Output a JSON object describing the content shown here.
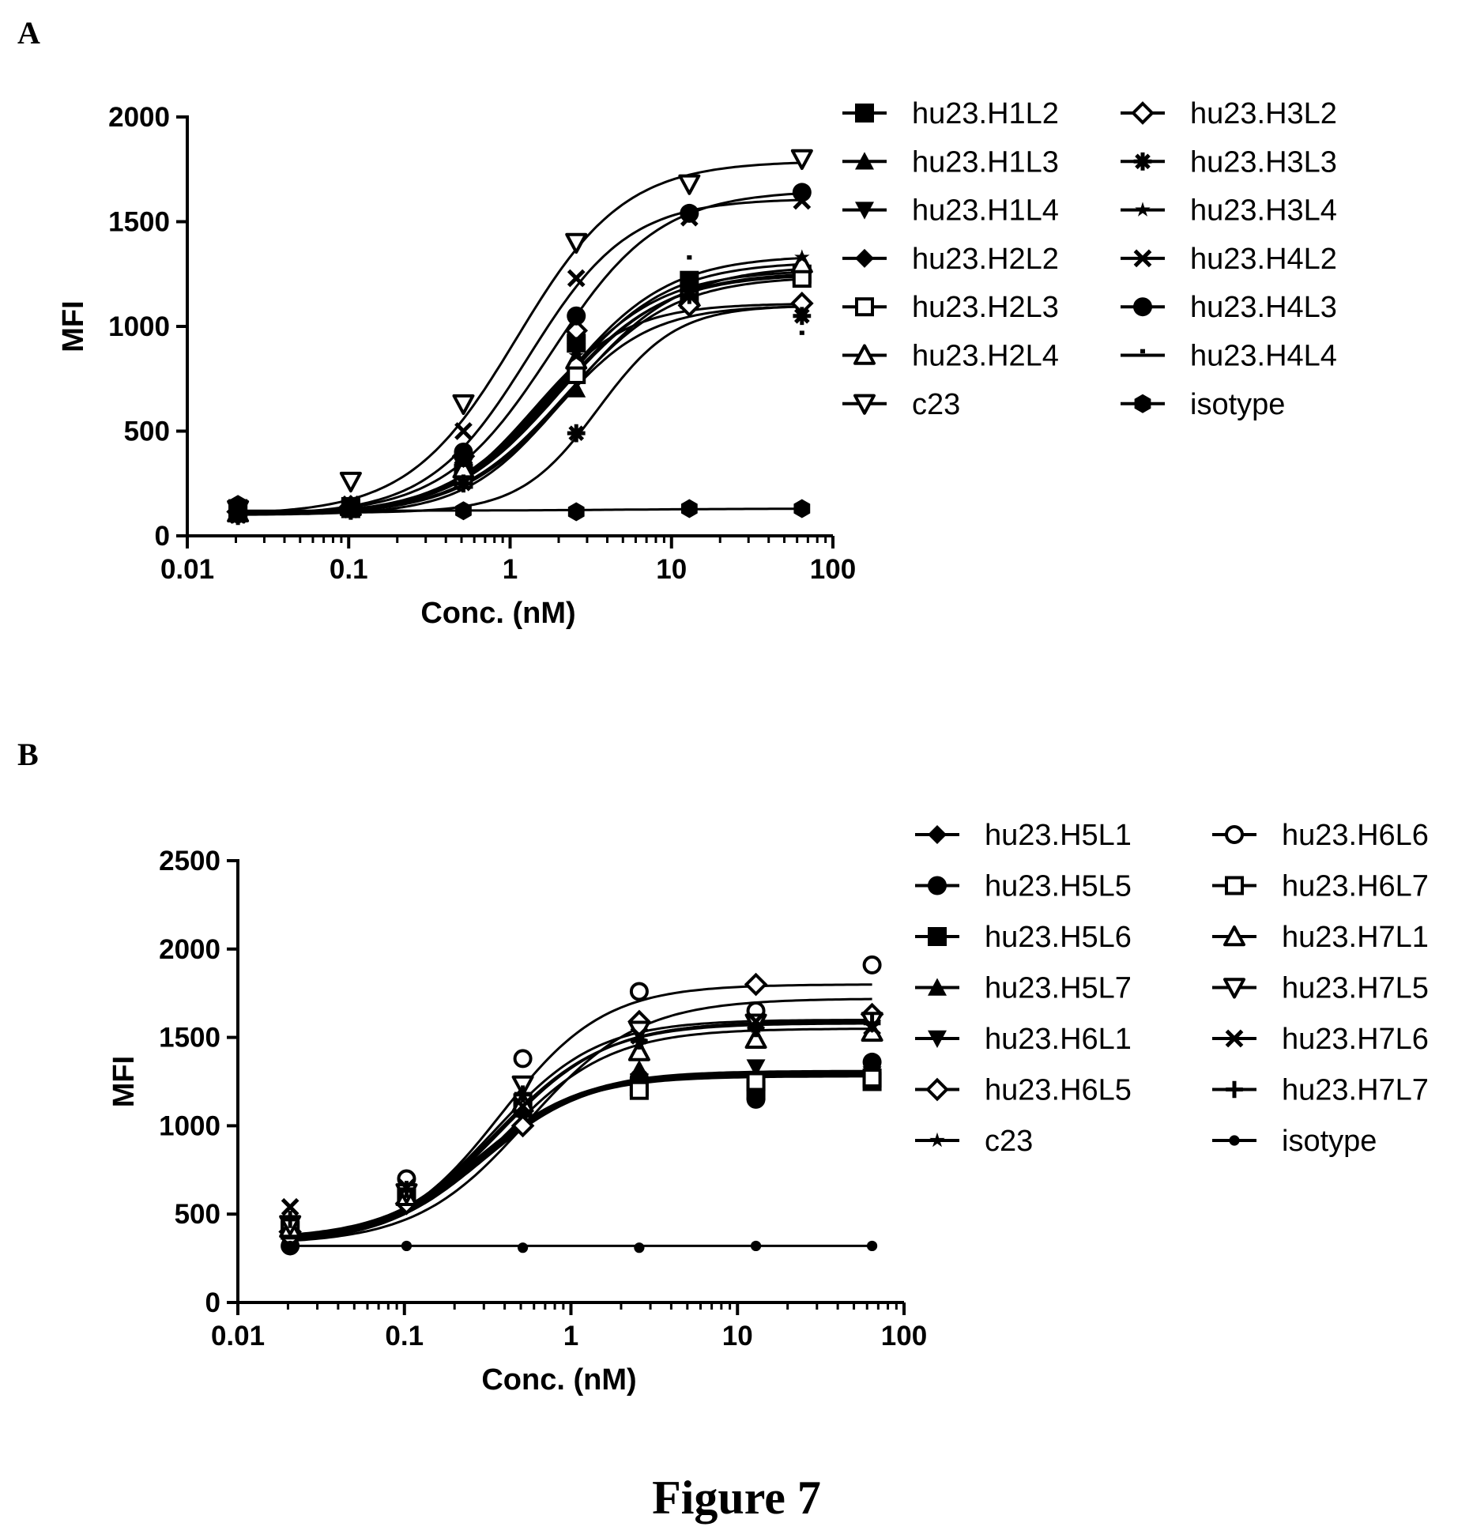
{
  "figure_caption": "Figure 7",
  "chart_data": [
    {
      "panel": "A",
      "type": "line",
      "xscale": "log",
      "xlabel": "Conc. (nM)",
      "ylabel": "MFI",
      "xlim": [
        0.01,
        100
      ],
      "ylim": [
        0,
        2000
      ],
      "xticks": [
        "0.01",
        "0.1",
        "1",
        "10",
        "100"
      ],
      "yticks": [
        "0",
        "500",
        "1000",
        "1500",
        "2000"
      ],
      "legend_position": "right",
      "x": [
        0.0206,
        0.103,
        0.514,
        2.57,
        12.9,
        64.3
      ],
      "series": [
        {
          "name": "hu23.H1L2",
          "marker": "square-filled",
          "values": [
            110,
            140,
            300,
            920,
            1220,
            1250
          ],
          "fit": {
            "bottom": 100,
            "top": 1260,
            "ec50": 2.0,
            "hill": 1.3
          }
        },
        {
          "name": "hu23.H1L3",
          "marker": "triangle-up-filled",
          "values": [
            115,
            130,
            280,
            700,
            1180,
            1280
          ],
          "fit": {
            "bottom": 100,
            "top": 1290,
            "ec50": 2.4,
            "hill": 1.3
          }
        },
        {
          "name": "hu23.H1L4",
          "marker": "triangle-down-filled",
          "values": [
            120,
            145,
            330,
            880,
            1150,
            1240
          ],
          "fit": {
            "bottom": 100,
            "top": 1250,
            "ec50": 1.9,
            "hill": 1.3
          }
        },
        {
          "name": "hu23.H2L2",
          "marker": "diamond-filled",
          "values": [
            100,
            140,
            350,
            950,
            1170,
            1260
          ],
          "fit": {
            "bottom": 100,
            "top": 1270,
            "ec50": 1.8,
            "hill": 1.3
          }
        },
        {
          "name": "hu23.H2L3",
          "marker": "square-open",
          "values": [
            130,
            130,
            270,
            770,
            1130,
            1230
          ],
          "fit": {
            "bottom": 100,
            "top": 1240,
            "ec50": 2.2,
            "hill": 1.3
          }
        },
        {
          "name": "hu23.H2L4",
          "marker": "triangle-up-open",
          "values": [
            110,
            140,
            320,
            840,
            1140,
            1300
          ],
          "fit": {
            "bottom": 100,
            "top": 1310,
            "ec50": 2.0,
            "hill": 1.3
          }
        },
        {
          "name": "c23",
          "marker": "triangle-down-open",
          "values": [
            125,
            260,
            630,
            1400,
            1680,
            1800
          ],
          "fit": {
            "bottom": 100,
            "top": 1790,
            "ec50": 1.1,
            "hill": 1.3
          }
        },
        {
          "name": "hu23.H3L2",
          "marker": "diamond-open",
          "values": [
            115,
            140,
            380,
            980,
            1100,
            1110
          ],
          "fit": {
            "bottom": 100,
            "top": 1110,
            "ec50": 1.4,
            "hill": 1.5
          }
        },
        {
          "name": "hu23.H3L3",
          "marker": "asterisk",
          "values": [
            95,
            120,
            250,
            490,
            1150,
            1050
          ],
          "fit": {
            "bottom": 110,
            "top": 1100,
            "ec50": 3.5,
            "hill": 1.8
          }
        },
        {
          "name": "hu23.H3L4",
          "marker": "star",
          "values": [
            110,
            140,
            360,
            860,
            1180,
            1330
          ],
          "fit": {
            "bottom": 100,
            "top": 1340,
            "ec50": 2.0,
            "hill": 1.3
          }
        },
        {
          "name": "hu23.H4L2",
          "marker": "x",
          "values": [
            100,
            150,
            500,
            1230,
            1520,
            1600
          ],
          "fit": {
            "bottom": 100,
            "top": 1610,
            "ec50": 1.3,
            "hill": 1.4
          }
        },
        {
          "name": "hu23.H4L3",
          "marker": "circle-filled",
          "values": [
            105,
            130,
            400,
            1050,
            1540,
            1640
          ],
          "fit": {
            "bottom": 100,
            "top": 1650,
            "ec50": 1.8,
            "hill": 1.3
          }
        },
        {
          "name": "hu23.H4L4",
          "marker": "tick",
          "values": [
            95,
            120,
            320,
            920,
            1310,
            950
          ],
          "fit": {
            "bottom": 100,
            "top": 1100,
            "ec50": 1.9,
            "hill": 1.5
          }
        },
        {
          "name": "isotype",
          "marker": "hexagon-filled",
          "values": [
            150,
            125,
            120,
            115,
            130,
            130
          ],
          "fit": {
            "bottom": 120,
            "top": 130,
            "ec50": 5.0,
            "hill": 1.0
          }
        }
      ]
    },
    {
      "panel": "B",
      "type": "line",
      "xscale": "log",
      "xlabel": "Conc. (nM)",
      "ylabel": "MFI",
      "xlim": [
        0.01,
        100
      ],
      "ylim": [
        0,
        2500
      ],
      "xticks": [
        "0.01",
        "0.1",
        "1",
        "10",
        "100"
      ],
      "yticks": [
        "0",
        "500",
        "1000",
        "1500",
        "2000",
        "2500"
      ],
      "legend_position": "right",
      "x": [
        0.0206,
        0.103,
        0.514,
        2.57,
        12.9,
        64.3
      ],
      "series": [
        {
          "name": "hu23.H5L1",
          "marker": "diamond-filled",
          "values": [
            390,
            600,
            1120,
            1290,
            1260,
            1290
          ],
          "fit": {
            "bottom": 330,
            "top": 1300,
            "ec50": 0.3,
            "hill": 1.4
          }
        },
        {
          "name": "hu23.H5L5",
          "marker": "circle-filled",
          "values": [
            320,
            580,
            1090,
            1270,
            1150,
            1360
          ],
          "fit": {
            "bottom": 330,
            "top": 1290,
            "ec50": 0.3,
            "hill": 1.4
          }
        },
        {
          "name": "hu23.H5L6",
          "marker": "square-filled",
          "values": [
            410,
            610,
            1100,
            1220,
            1200,
            1250
          ],
          "fit": {
            "bottom": 350,
            "top": 1280,
            "ec50": 0.28,
            "hill": 1.4
          }
        },
        {
          "name": "hu23.H5L7",
          "marker": "triangle-up-filled",
          "values": [
            440,
            630,
            1140,
            1320,
            1280,
            1300
          ],
          "fit": {
            "bottom": 350,
            "top": 1300,
            "ec50": 0.28,
            "hill": 1.4
          }
        },
        {
          "name": "hu23.H6L1",
          "marker": "triangle-down-filled",
          "values": [
            360,
            590,
            1080,
            1250,
            1330,
            1290
          ],
          "fit": {
            "bottom": 340,
            "top": 1310,
            "ec50": 0.3,
            "hill": 1.4
          }
        },
        {
          "name": "hu23.H6L5",
          "marker": "diamond-open",
          "values": [
            400,
            560,
            1000,
            1590,
            1800,
            1630
          ],
          "fit": {
            "bottom": 330,
            "top": 1720,
            "ec50": 0.55,
            "hill": 1.3
          }
        },
        {
          "name": "c23",
          "marker": "star",
          "values": [
            450,
            600,
            1140,
            1480,
            1560,
            1560
          ],
          "fit": {
            "bottom": 350,
            "top": 1580,
            "ec50": 0.36,
            "hill": 1.35
          }
        },
        {
          "name": "hu23.H6L6",
          "marker": "circle-open",
          "values": [
            380,
            700,
            1380,
            1760,
            1650,
            1910
          ],
          "fit": {
            "bottom": 330,
            "top": 1800,
            "ec50": 0.38,
            "hill": 1.4
          }
        },
        {
          "name": "hu23.H6L7",
          "marker": "square-open",
          "values": [
            410,
            620,
            1130,
            1200,
            1250,
            1270
          ],
          "fit": {
            "bottom": 340,
            "top": 1290,
            "ec50": 0.28,
            "hill": 1.4
          }
        },
        {
          "name": "hu23.H7L1",
          "marker": "triangle-up-open",
          "values": [
            420,
            600,
            1130,
            1420,
            1490,
            1530
          ],
          "fit": {
            "bottom": 340,
            "top": 1550,
            "ec50": 0.4,
            "hill": 1.35
          }
        },
        {
          "name": "hu23.H7L5",
          "marker": "triangle-down-open",
          "values": [
            440,
            620,
            1230,
            1540,
            1580,
            1590
          ],
          "fit": {
            "bottom": 350,
            "top": 1600,
            "ec50": 0.35,
            "hill": 1.4
          }
        },
        {
          "name": "hu23.H7L6",
          "marker": "x",
          "values": [
            540,
            650,
            1110,
            1510,
            1590,
            1560
          ],
          "fit": {
            "bottom": 360,
            "top": 1590,
            "ec50": 0.38,
            "hill": 1.35
          }
        },
        {
          "name": "hu23.H7L7",
          "marker": "plus",
          "values": [
            470,
            640,
            1180,
            1480,
            1550,
            1580
          ],
          "fit": {
            "bottom": 350,
            "top": 1590,
            "ec50": 0.38,
            "hill": 1.35
          }
        },
        {
          "name": "isotype",
          "marker": "dot",
          "values": [
            320,
            320,
            310,
            310,
            320,
            320
          ],
          "fit": {
            "bottom": 320,
            "top": 320,
            "ec50": 1.0,
            "hill": 1.0
          }
        }
      ]
    }
  ]
}
